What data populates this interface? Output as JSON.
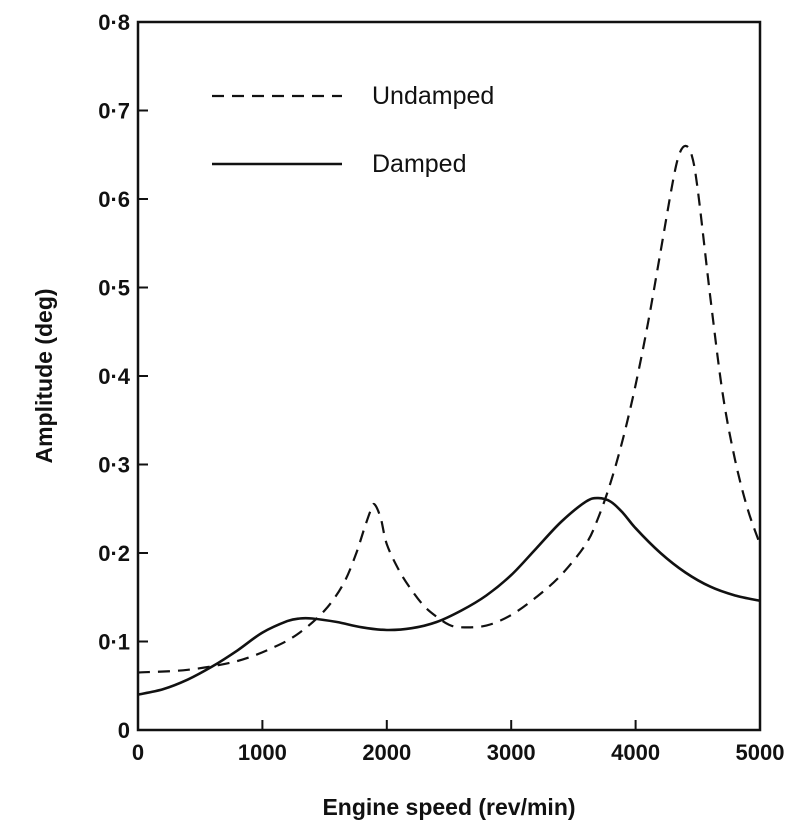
{
  "chart_data": {
    "type": "line",
    "title": "",
    "xlabel": "Engine speed (rev/min)",
    "ylabel": "Amplitude (deg)",
    "xlim": [
      0,
      5000
    ],
    "ylim": [
      0,
      0.8
    ],
    "x_ticks": [
      0,
      1000,
      2000,
      3000,
      4000,
      5000
    ],
    "x_tick_labels": [
      "0",
      "1000",
      "2000",
      "3000",
      "4000",
      "5000"
    ],
    "y_ticks": [
      0,
      0.1,
      0.2,
      0.3,
      0.4,
      0.5,
      0.6,
      0.7,
      0.8
    ],
    "y_tick_labels": [
      "0",
      "0·1",
      "0·2",
      "0·3",
      "0·4",
      "0·5",
      "0·6",
      "0·7",
      "0·8"
    ],
    "grid": false,
    "legend_position": "top-left",
    "series": [
      {
        "name": "Undamped",
        "style": "dashed",
        "color": "#111111",
        "x": [
          0,
          400,
          800,
          1100,
          1300,
          1500,
          1650,
          1750,
          1820,
          1870,
          1900,
          1950,
          2000,
          2100,
          2200,
          2300,
          2400,
          2500,
          2600,
          2800,
          3000,
          3200,
          3400,
          3600,
          3700,
          3800,
          3900,
          4000,
          4100,
          4200,
          4300,
          4350,
          4400,
          4450,
          4500,
          4600,
          4700,
          4800,
          4900,
          5000
        ],
        "y": [
          0.065,
          0.068,
          0.078,
          0.094,
          0.11,
          0.135,
          0.165,
          0.198,
          0.228,
          0.248,
          0.255,
          0.24,
          0.21,
          0.18,
          0.158,
          0.14,
          0.128,
          0.119,
          0.116,
          0.118,
          0.13,
          0.15,
          0.175,
          0.21,
          0.24,
          0.28,
          0.33,
          0.39,
          0.46,
          0.54,
          0.62,
          0.65,
          0.66,
          0.65,
          0.61,
          0.49,
          0.38,
          0.305,
          0.25,
          0.21
        ]
      },
      {
        "name": "Damped",
        "style": "solid",
        "color": "#111111",
        "x": [
          0,
          200,
          400,
          600,
          800,
          1000,
          1200,
          1300,
          1400,
          1600,
          1800,
          2000,
          2200,
          2400,
          2600,
          2800,
          3000,
          3200,
          3400,
          3600,
          3700,
          3800,
          3900,
          4000,
          4200,
          4400,
          4600,
          4800,
          5000
        ],
        "y": [
          0.04,
          0.046,
          0.057,
          0.072,
          0.09,
          0.11,
          0.123,
          0.126,
          0.126,
          0.122,
          0.116,
          0.113,
          0.115,
          0.122,
          0.135,
          0.152,
          0.175,
          0.205,
          0.235,
          0.258,
          0.262,
          0.258,
          0.245,
          0.228,
          0.2,
          0.178,
          0.162,
          0.152,
          0.146
        ]
      }
    ]
  }
}
